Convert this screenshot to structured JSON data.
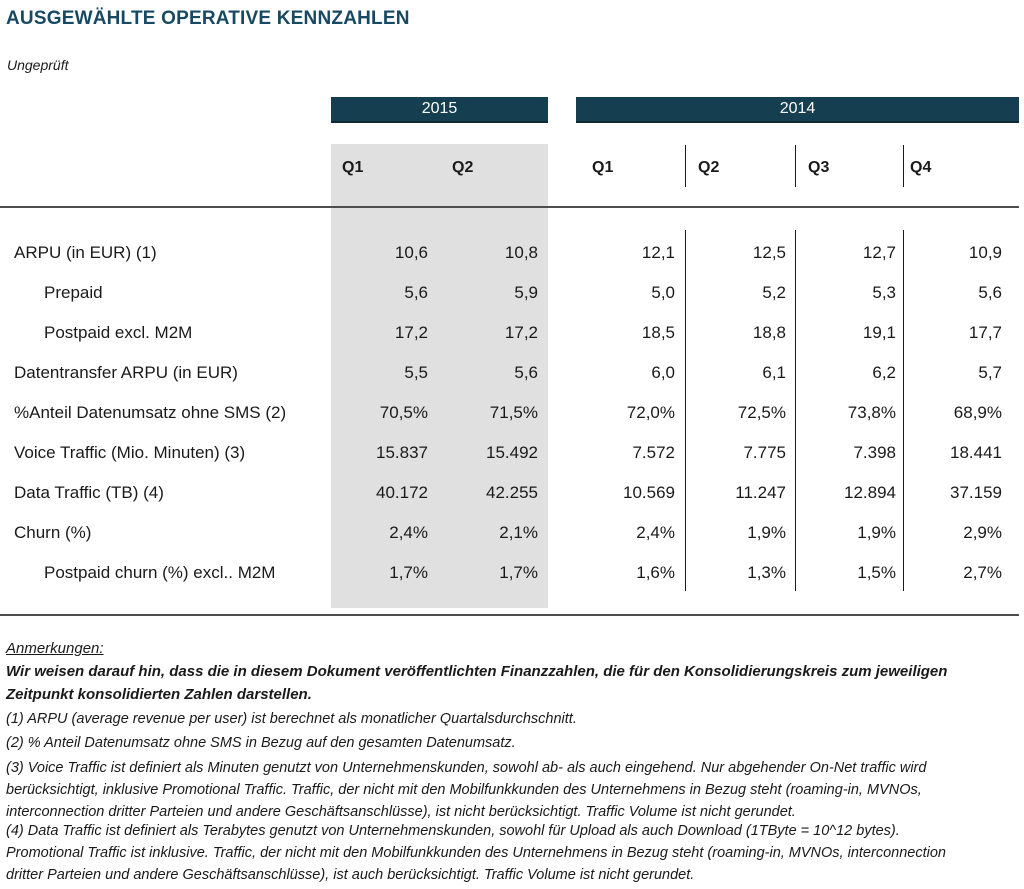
{
  "page": {
    "title": "AUSGEWÄHLTE OPERATIVE KENNZAHLEN",
    "subtitle": "Ungeprüft"
  },
  "colors": {
    "band_bg": "#153F50",
    "title_text": "#174963",
    "column_highlight": "#E0E0E0",
    "rule": "#4D4D4D"
  },
  "table": {
    "year_groups": [
      {
        "label": "2015",
        "quarter_count": 2
      },
      {
        "label": "2014",
        "quarter_count": 4
      }
    ],
    "quarters": [
      "Q1",
      "Q2",
      "Q1",
      "Q2",
      "Q3",
      "Q4"
    ],
    "rows": [
      {
        "label": "ARPU (in EUR) (1)",
        "indent": false,
        "values": [
          "10,6",
          "10,8",
          "12,1",
          "12,5",
          "12,7",
          "10,9"
        ]
      },
      {
        "label": "Prepaid",
        "indent": true,
        "values": [
          "5,6",
          "5,9",
          "5,0",
          "5,2",
          "5,3",
          "5,6"
        ]
      },
      {
        "label": "Postpaid excl. M2M",
        "indent": true,
        "values": [
          "17,2",
          "17,2",
          "18,5",
          "18,8",
          "19,1",
          "17,7"
        ]
      },
      {
        "label": "Datentransfer ARPU (in EUR)",
        "indent": false,
        "values": [
          "5,5",
          "5,6",
          "6,0",
          "6,1",
          "6,2",
          "5,7"
        ]
      },
      {
        "label": "%Anteil Datenumsatz ohne SMS (2)",
        "indent": false,
        "values": [
          "70,5%",
          "71,5%",
          "72,0%",
          "72,5%",
          "73,8%",
          "68,9%"
        ]
      },
      {
        "label": "Voice Traffic (Mio. Minuten) (3)",
        "indent": false,
        "values": [
          "15.837",
          "15.492",
          "7.572",
          "7.775",
          "7.398",
          "18.441"
        ]
      },
      {
        "label": "Data Traffic (TB) (4)",
        "indent": false,
        "values": [
          "40.172",
          "42.255",
          "10.569",
          "11.247",
          "12.894",
          "37.159"
        ]
      },
      {
        "label": "Churn (%)",
        "indent": false,
        "values": [
          "2,4%",
          "2,1%",
          "2,4%",
          "1,9%",
          "1,9%",
          "2,9%"
        ]
      },
      {
        "label": "Postpaid churn (%) excl.. M2M",
        "indent": true,
        "values": [
          "1,7%",
          "1,7%",
          "1,6%",
          "1,3%",
          "1,5%",
          "2,7%"
        ]
      }
    ]
  },
  "footnotes": {
    "heading": "Anmerkungen:",
    "notice": "Wir weisen darauf hin, dass die in diesem Dokument veröffentlichten Finanzzahlen, die für den Konsolidierungskreis zum jeweiligen\nZeitpunkt konsolidierten Zahlen darstellen.",
    "notes": [
      "(1) ARPU (average revenue per user) ist berechnet als monatlicher Quartalsdurchschnitt.",
      "(2) % Anteil Datenumsatz ohne SMS in Bezug auf den gesamten Datenumsatz.",
      "(3) Voice Traffic ist definiert als Minuten genutzt von Unternehmenskunden, sowohl ab- als auch eingehend. Nur abgehender On-Net traffic wird\nberücksichtigt, inklusive Promotional Traffic. Traffic, der nicht mit den Mobilfunkkunden des Unternehmens in Bezug steht (roaming-in, MVNOs,\ninterconnection dritter Parteien und andere Geschäftsanschlüsse), ist nicht berücksichtigt. Traffic Volume ist nicht gerundet.",
      "(4) Data Traffic ist definiert als Terabytes genutzt von Unternehmenskunden, sowohl für Upload als auch Download (1TByte = 10^12 bytes).\nPromotional Traffic ist inklusive. Traffic, der nicht mit den Mobilfunkkunden des Unternehmens in Bezug steht (roaming-in, MVNOs, interconnection\ndritter Parteien und andere Geschäftsanschlüsse), ist auch berücksichtigt. Traffic Volume ist nicht gerundet."
    ]
  }
}
